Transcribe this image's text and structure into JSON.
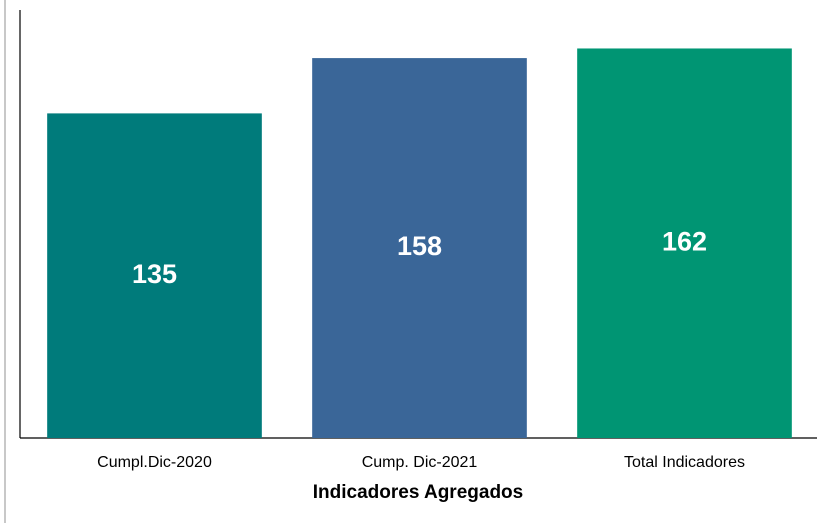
{
  "chart_data": {
    "type": "bar",
    "x_label": "Indicadores Agregados",
    "categories": [
      "Cumpl.Dic-2020",
      "Cump. Dic-2021",
      "Total Indicadores"
    ],
    "values": [
      135,
      158,
      162
    ],
    "colors": [
      "#007b7b",
      "#3a6698",
      "#009573"
    ],
    "ylim": [
      0,
      178
    ]
  }
}
